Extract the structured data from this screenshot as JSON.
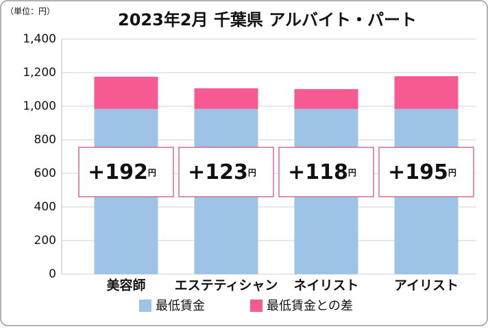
{
  "chart_data": {
    "type": "stacked_bar",
    "title": "2023年2月 千葉県 アルバイト・パート",
    "unit_note": "（単位：円）",
    "categories": [
      "美容師",
      "エステティシャン",
      "ネイリスト",
      "アイリスト"
    ],
    "series": [
      {
        "name": "最低賃金",
        "color": "#9dc3e6",
        "values": [
          984,
          984,
          984,
          984
        ]
      },
      {
        "name": "最低賃金との差",
        "color": "#f75a92",
        "values": [
          192,
          123,
          118,
          195
        ],
        "value_labels": [
          "+192",
          "+123",
          "+118",
          "+195"
        ]
      }
    ],
    "value_label_unit": "円",
    "ylim": [
      0,
      1400
    ],
    "yticks": [
      0,
      200,
      400,
      600,
      800,
      {
        "value": 1000,
        "label": "1,000"
      },
      {
        "value": 1200,
        "label": "1,200"
      },
      {
        "value": 1400,
        "label": "1,400"
      }
    ],
    "grid": true
  }
}
